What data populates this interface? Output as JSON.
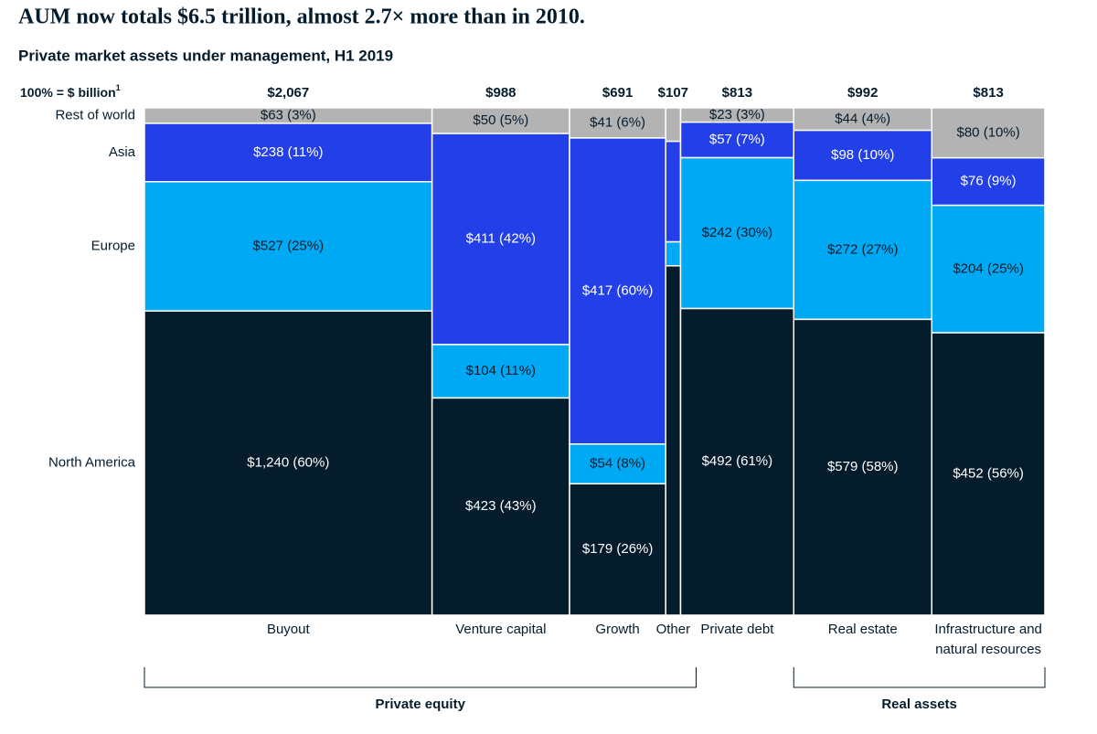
{
  "chart_data": {
    "type": "mekko",
    "title": "AUM now totals $6.5 trillion, almost 2.7× more than in 2010.",
    "subtitle": "Private market assets under management, H1 2019",
    "total_label": "100% = $ billion",
    "total_label_note": "1",
    "categories": [
      "Buyout",
      "Venture capital",
      "Growth",
      "Other",
      "Private debt",
      "Real estate",
      "Infrastructure and natural resources"
    ],
    "totals": [
      {
        "value": 2067,
        "label": "$2,067"
      },
      {
        "value": 988,
        "label": "$988"
      },
      {
        "value": 691,
        "label": "$691"
      },
      {
        "value": 107,
        "label": "$107"
      },
      {
        "value": 813,
        "label": "$813"
      },
      {
        "value": 992,
        "label": "$992"
      },
      {
        "value": 813,
        "label": "$813"
      }
    ],
    "series": [
      {
        "name": "Rest of world",
        "color": "#b3b3b3",
        "label_color": "#051c2c",
        "values": [
          63,
          50,
          41,
          7,
          23,
          44,
          80
        ],
        "value_labels": [
          "$63 (3%)",
          "$50 (5%)",
          "$41 (6%)",
          null,
          "$23 (3%)",
          "$44 (4%)",
          "$80 (10%)"
        ]
      },
      {
        "name": "Asia",
        "color": "#2340e8",
        "label_color": "#ffffff",
        "values": [
          238,
          411,
          417,
          21,
          57,
          98,
          76
        ],
        "value_labels": [
          "$238 (11%)",
          "$411 (42%)",
          "$417 (60%)",
          null,
          "$57 (7%)",
          "$98 (10%)",
          "$76 (9%)"
        ]
      },
      {
        "name": "Europe",
        "color": "#00a9f4",
        "label_color": "#051c2c",
        "values": [
          527,
          104,
          54,
          5,
          242,
          272,
          204
        ],
        "value_labels": [
          "$527 (25%)",
          "$104 (11%)",
          "$54 (8%)",
          null,
          "$242 (30%)",
          "$272 (27%)",
          "$204 (25%)"
        ]
      },
      {
        "name": "North America",
        "color": "#051c2c",
        "label_color": "#ffffff",
        "values": [
          1240,
          423,
          179,
          73,
          492,
          579,
          452
        ],
        "value_labels": [
          "$1,240 (60%)",
          "$423 (43%)",
          "$179 (26%)",
          null,
          "$492 (61%)",
          "$579 (58%)",
          "$452 (56%)"
        ]
      }
    ],
    "groups": [
      {
        "name": "Private equity",
        "span": [
          0,
          3
        ]
      },
      {
        "name": "Real assets",
        "span": [
          5,
          6
        ]
      }
    ]
  }
}
